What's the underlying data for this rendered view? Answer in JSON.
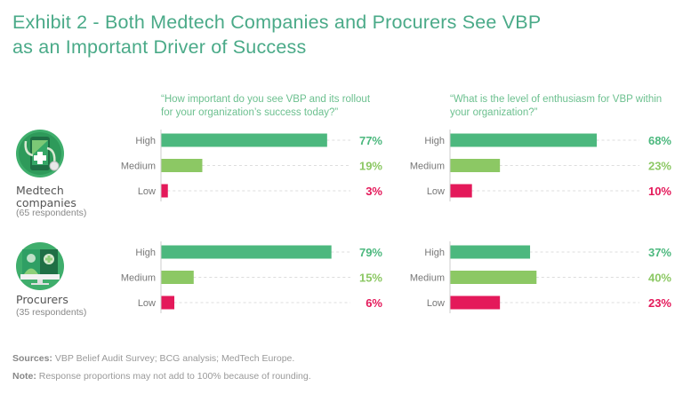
{
  "title_line1": "Exhibit 2 - Both Medtech Companies and Procurers See VBP",
  "title_line2": "as an Important Driver of Success",
  "questions": [
    {
      "line1": "“How important do you see VBP and its rollout",
      "line2": "for your organization’s success today?”"
    },
    {
      "line1": "“What is the level of enthusiasm for VBP within",
      "line2": "your organization?”"
    }
  ],
  "groups": [
    {
      "name_line1": "Medtech",
      "name_line2": "companies",
      "respondents": "(65 respondents)",
      "icon": "smartphone-stethoscope-icon"
    },
    {
      "name_line1": "Procurers",
      "name_line2": "",
      "respondents": "(35 respondents)",
      "icon": "monitor-doctor-icon"
    }
  ],
  "colors": {
    "High": "#4cb87e",
    "Medium": "#8cc864",
    "Low": "#e4195a",
    "title": "#4aaa88"
  },
  "footer": {
    "sources_label": "Sources:",
    "sources_text": " VBP Belief Audit Survey; BCG analysis; MedTech Europe.",
    "note_label": "Note:",
    "note_text": " Response proportions may not add to 100% because of rounding."
  },
  "chart_data": [
    {
      "type": "bar",
      "orientation": "horizontal",
      "group": "Medtech companies",
      "question": "How important do you see VBP and its rollout for your organization's success today?",
      "categories": [
        "High",
        "Medium",
        "Low"
      ],
      "values": [
        77,
        19,
        3
      ],
      "unit": "%",
      "xlim": [
        0,
        100
      ]
    },
    {
      "type": "bar",
      "orientation": "horizontal",
      "group": "Medtech companies",
      "question": "What is the level of enthusiasm for VBP within your organization?",
      "categories": [
        "High",
        "Medium",
        "Low"
      ],
      "values": [
        68,
        23,
        10
      ],
      "unit": "%",
      "xlim": [
        0,
        100
      ]
    },
    {
      "type": "bar",
      "orientation": "horizontal",
      "group": "Procurers",
      "question": "How important do you see VBP and its rollout for your organization's success today?",
      "categories": [
        "High",
        "Medium",
        "Low"
      ],
      "values": [
        79,
        15,
        6
      ],
      "unit": "%",
      "xlim": [
        0,
        100
      ]
    },
    {
      "type": "bar",
      "orientation": "horizontal",
      "group": "Procurers",
      "question": "What is the level of enthusiasm for VBP within your organization?",
      "categories": [
        "High",
        "Medium",
        "Low"
      ],
      "values": [
        37,
        40,
        23
      ],
      "unit": "%",
      "xlim": [
        0,
        100
      ]
    }
  ]
}
